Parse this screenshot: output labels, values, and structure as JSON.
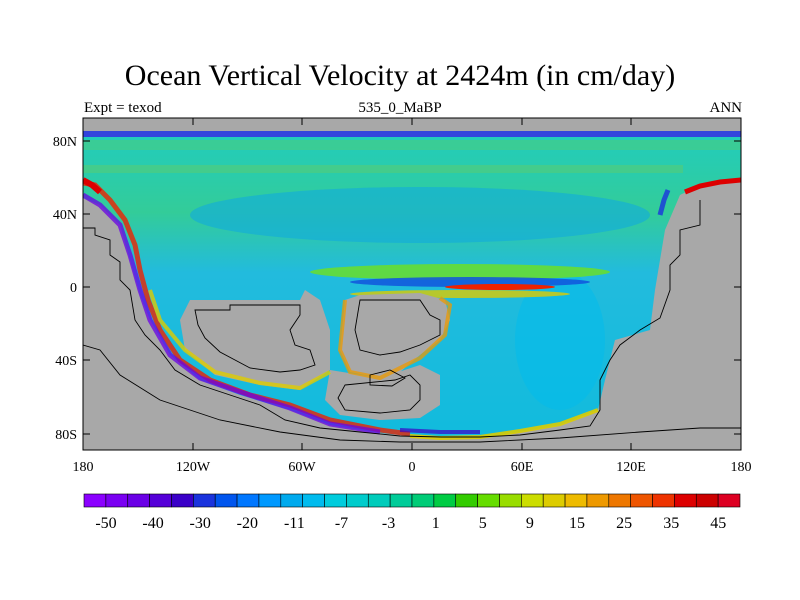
{
  "title": "Ocean Vertical Velocity at 2424m (in cm/day)",
  "subtitle_left": "Expt = texod",
  "subtitle_center": "535_0_MaBP",
  "subtitle_right": "ANN",
  "y_ticks": [
    "80N",
    "40N",
    "0",
    "40S",
    "80S"
  ],
  "x_ticks": [
    "180",
    "120W",
    "60W",
    "0",
    "60E",
    "120E",
    "180"
  ],
  "colorbar": {
    "labels": [
      "-50",
      "-40",
      "-30",
      "-20",
      "-11",
      "-7",
      "-3",
      "1",
      "5",
      "9",
      "15",
      "25",
      "35",
      "45"
    ],
    "colors": [
      "#8b00ff",
      "#7a00f2",
      "#6a00e6",
      "#5500d8",
      "#3a00c8",
      "#1a33dd",
      "#0055ee",
      "#0077ff",
      "#0099ff",
      "#00aaee",
      "#00bbee",
      "#00ccdd",
      "#00cccc",
      "#00ccbb",
      "#00cc99",
      "#00cc77",
      "#00cc44",
      "#33cc00",
      "#66dd00",
      "#99dd00",
      "#ccdd00",
      "#ddcc00",
      "#eebb00",
      "#ee9900",
      "#ee7700",
      "#ee5500",
      "#ee3300",
      "#dd0000",
      "#cc0000",
      "#dd0022"
    ]
  },
  "colors": {
    "land": "#a8a8a8",
    "ocean_base": "#22cccc",
    "coast": "#000000"
  }
}
